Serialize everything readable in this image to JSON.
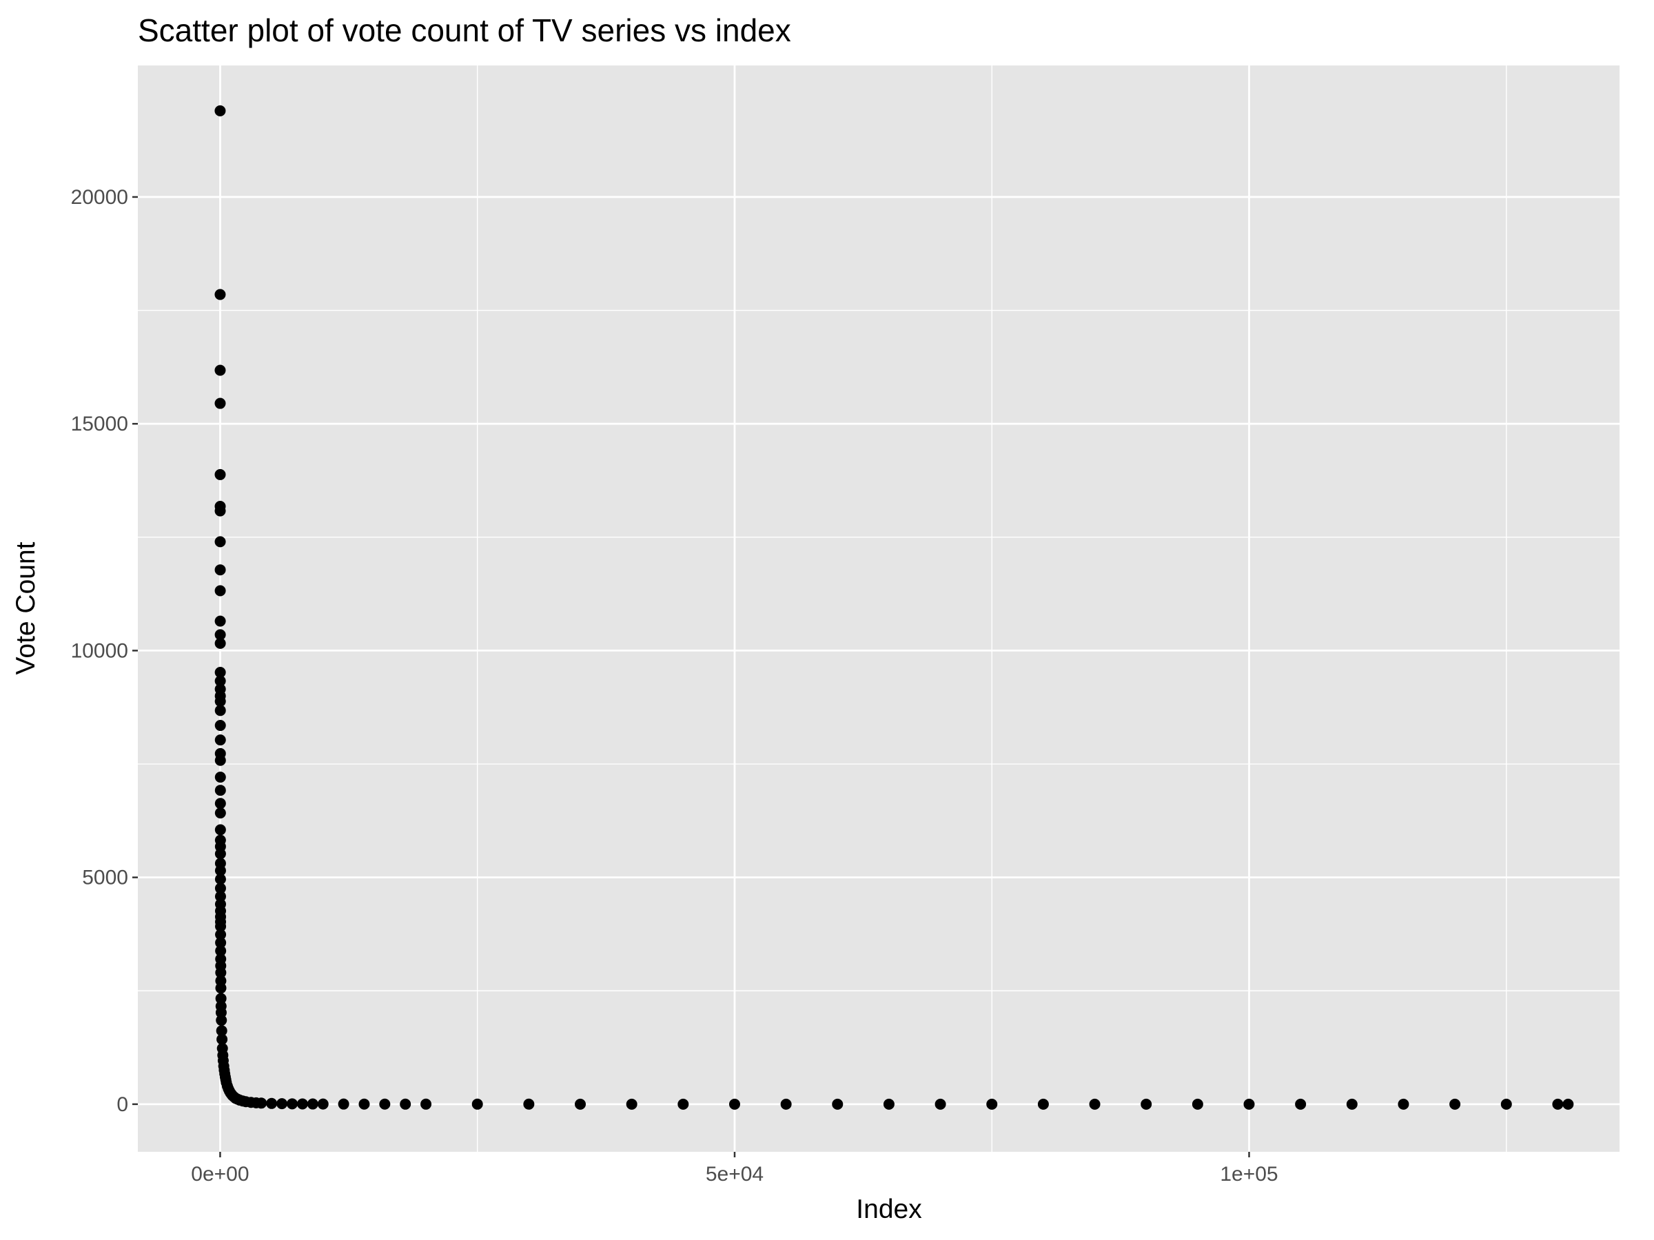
{
  "chart_data": {
    "type": "scatter",
    "title": "Scatter plot of vote count of TV series vs index",
    "xlabel": "Index",
    "ylabel": "Vote Count",
    "xlim": [
      -8000,
      136000
    ],
    "ylim": [
      -1050,
      22900
    ],
    "x_ticks": [
      {
        "value": 0,
        "label": "0e+00"
      },
      {
        "value": 50000,
        "label": "5e+04"
      },
      {
        "value": 100000,
        "label": "1e+05"
      }
    ],
    "y_ticks": [
      {
        "value": 0,
        "label": "0"
      },
      {
        "value": 5000,
        "label": "5000"
      },
      {
        "value": 10000,
        "label": "10000"
      },
      {
        "value": 15000,
        "label": "15000"
      },
      {
        "value": 20000,
        "label": "20000"
      }
    ],
    "x_minor_ticks": [
      25000,
      75000,
      125000
    ],
    "y_minor_ticks": [
      2500,
      7500,
      12500,
      17500
    ],
    "grid": true,
    "panel_background": "#e5e5e5",
    "grid_color": "#ffffff",
    "point_color": "#000000",
    "series": [
      {
        "x": [
          0,
          1,
          2,
          3,
          4,
          5,
          6,
          7,
          8,
          9,
          10,
          11,
          12,
          13,
          14,
          15,
          16,
          17,
          18,
          19,
          20,
          21,
          22,
          23,
          24,
          25,
          26,
          27,
          28,
          29,
          30,
          31,
          32,
          33,
          34,
          35,
          36,
          37,
          38,
          39,
          40,
          42,
          45,
          48,
          52,
          56,
          60,
          65,
          70,
          80,
          90,
          100,
          120,
          150,
          180,
          220,
          260,
          300,
          350,
          400,
          450,
          500,
          550,
          600,
          700,
          800,
          900,
          1000,
          1100,
          1200,
          1350,
          1500,
          1700,
          1900,
          2200,
          2500,
          3000,
          3500,
          4000,
          5000,
          6000,
          7000,
          8000,
          9000,
          10000,
          12000,
          14000,
          16000,
          18000,
          20000,
          25000,
          30000,
          35000,
          40000,
          45000,
          50000,
          55000,
          60000,
          65000,
          70000,
          75000,
          80000,
          85000,
          90000,
          95000,
          100000,
          105000,
          110000,
          115000,
          120000,
          125000,
          130000,
          131000
        ],
        "y": [
          21900,
          17850,
          16180,
          15450,
          13880,
          13180,
          13080,
          12400,
          11780,
          11320,
          10650,
          10350,
          10160,
          9520,
          9330,
          9150,
          9000,
          8880,
          8680,
          8350,
          8030,
          7730,
          7580,
          7210,
          6920,
          6630,
          6420,
          6050,
          5820,
          5680,
          5520,
          5310,
          5150,
          4960,
          4760,
          4580,
          4410,
          4260,
          4130,
          4020,
          3920,
          3740,
          3560,
          3380,
          3200,
          3050,
          2900,
          2720,
          2560,
          2330,
          2160,
          2020,
          1850,
          1620,
          1430,
          1230,
          1080,
          960,
          840,
          750,
          670,
          600,
          540,
          480,
          400,
          340,
          290,
          250,
          220,
          190,
          160,
          130,
          110,
          90,
          70,
          55,
          40,
          30,
          24,
          16,
          11,
          8,
          6,
          5,
          4,
          3,
          2,
          2,
          1,
          1,
          1,
          1,
          0,
          0,
          0,
          0,
          0,
          0,
          0,
          0,
          0,
          0,
          0,
          0,
          0,
          0,
          0,
          0,
          0,
          0,
          0,
          0,
          0
        ]
      }
    ]
  }
}
